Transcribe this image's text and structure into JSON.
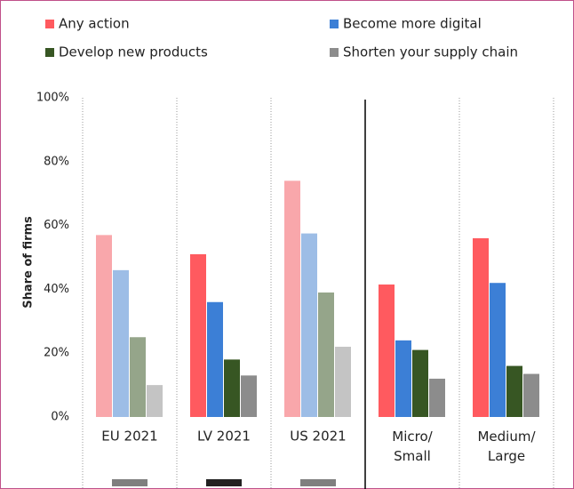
{
  "chart_data": {
    "type": "bar",
    "ylabel": "Share of firms",
    "categories": [
      "EU 2021",
      "LV 2021",
      "US 2021",
      "Micro/\nSmall",
      "Medium/\nLarge"
    ],
    "series": [
      {
        "name": "Any action",
        "color": "#ff5a5f",
        "colors": [
          "#f9a7ab",
          "#ff5a5f",
          "#f9a7ab",
          "#ff5a5f",
          "#ff5a5f"
        ],
        "values": [
          57,
          51,
          74,
          41.5,
          56
        ]
      },
      {
        "name": "Become more digital",
        "color": "#3c7fd6",
        "colors": [
          "#9dbde6",
          "#3c7fd6",
          "#9dbde6",
          "#3c7fd6",
          "#3c7fd6"
        ],
        "values": [
          46,
          36,
          57.5,
          24,
          42
        ]
      },
      {
        "name": "Develop new products",
        "color": "#375623",
        "colors": [
          "#95a58a",
          "#375623",
          "#95a58a",
          "#375623",
          "#375623"
        ],
        "values": [
          25,
          18,
          39,
          21,
          16
        ]
      },
      {
        "name": "Shorten your supply chain",
        "color": "#8c8c8c",
        "colors": [
          "#c4c4c4",
          "#8c8c8c",
          "#c4c4c4",
          "#8c8c8c",
          "#8c8c8c"
        ],
        "values": [
          10,
          13,
          22,
          12,
          13.5
        ]
      }
    ],
    "ylim": [
      0,
      100
    ],
    "yticks": [
      {
        "value": 0,
        "label": "0%"
      },
      {
        "value": 20,
        "label": "20%"
      },
      {
        "value": 40,
        "label": "40%"
      },
      {
        "value": 60,
        "label": "60%"
      },
      {
        "value": 80,
        "label": "80%"
      },
      {
        "value": 100,
        "label": "100%"
      }
    ],
    "legend": "top"
  }
}
